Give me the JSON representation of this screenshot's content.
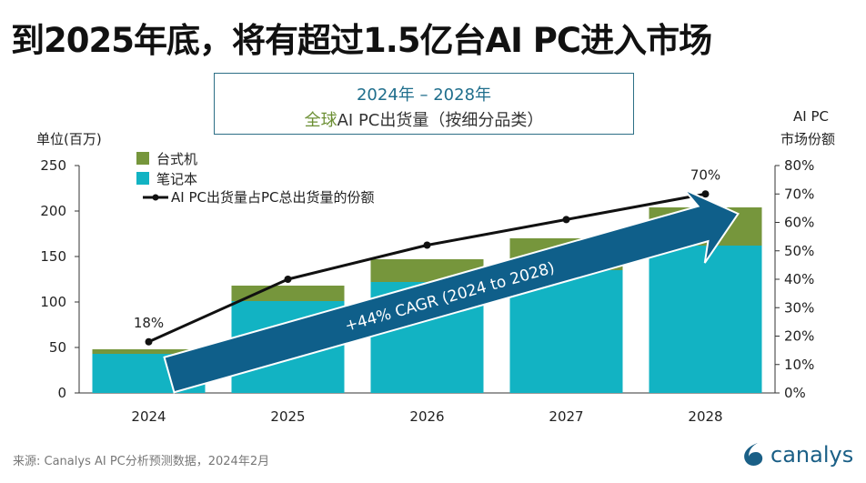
{
  "header": {
    "title": "到2025年底，将有超过1.5亿台AI PC进入市场"
  },
  "subtitle": {
    "line1": "2024年 – 2028年",
    "line2_highlight": "全球",
    "line2_rest": "AI PC出货量（按细分品类）"
  },
  "source": "来源: Canalys AI PC分析预测数据，2024年2月",
  "logo": {
    "text": "canalys"
  },
  "colors": {
    "desktop": "#76963c",
    "notebook": "#12b3c3",
    "line": "#111111",
    "arrow": "#0f5f8a"
  },
  "chart_data": {
    "type": "bar",
    "categories": [
      "2024",
      "2025",
      "2026",
      "2027",
      "2028"
    ],
    "series": [
      {
        "name": "笔记本",
        "values": [
          43,
          101,
          122,
          135,
          162
        ]
      },
      {
        "name": "台式机",
        "values": [
          5,
          17,
          25,
          35,
          42
        ]
      },
      {
        "name": "AI PC出货量占PC总出货量的份额",
        "type": "line",
        "axis": "right",
        "values": [
          18,
          40,
          52,
          61,
          70
        ]
      }
    ],
    "ylabel": "单位(百万)",
    "ylabel_right_line1": "AI PC",
    "ylabel_right_line2": "市场份额",
    "ylim": [
      0,
      250
    ],
    "yticks": [
      "0",
      "50",
      "100",
      "150",
      "200",
      "250"
    ],
    "ylim_right": [
      0,
      80
    ],
    "yticks_right": [
      "0%",
      "10%",
      "20%",
      "30%",
      "40%",
      "50%",
      "60%",
      "70%",
      "80%"
    ],
    "data_labels": {
      "first": "18%",
      "last": "70%"
    },
    "annotation": "+44% CAGR (2024 to 2028)",
    "stacked": true,
    "grid": false,
    "legend": "top-left"
  }
}
